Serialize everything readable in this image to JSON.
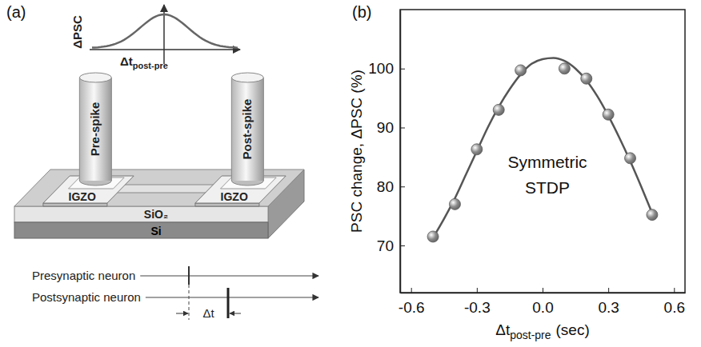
{
  "panel_labels": [
    "(a)",
    "(b)"
  ],
  "diagram": {
    "inset": {
      "ylabel": "ΔPSC",
      "xlabel": "Δt",
      "xlabel_sub": "post-pre"
    },
    "electrodes": [
      "Pre-spike",
      "Post-spike"
    ],
    "channels": [
      "IGZO",
      "IGZO"
    ],
    "layers": [
      "SiO₂",
      "Si"
    ],
    "timeline": {
      "neurons": [
        "Presynaptic neuron",
        "Postsynaptic neuron"
      ],
      "interval": "Δt"
    }
  },
  "chart_data": {
    "type": "scatter",
    "ylabel": "PSC change, ΔPSC (%)",
    "xlabel": "Δt",
    "xlabel_sub": "post-pre",
    "xlabel_unit": "(sec)",
    "annotation": "Symmetric STDP",
    "xlim": [
      -0.65,
      0.65
    ],
    "xticks": [
      -0.6,
      -0.3,
      {
        "value": 0,
        "label": "0.0"
      },
      0.3,
      0.6
    ],
    "ylim": [
      62,
      110
    ],
    "yticks": [
      70,
      80,
      90,
      100
    ],
    "grid": false,
    "series": [
      {
        "type": "line",
        "line_style": "solid",
        "color": "#555555",
        "x": [
          -0.5,
          -0.45,
          -0.4,
          -0.35,
          -0.3,
          -0.25,
          -0.2,
          -0.15,
          -0.1,
          -0.05,
          0,
          0.05,
          0.1,
          0.15,
          0.2,
          0.25,
          0.3,
          0.35,
          0.4,
          0.45,
          0.5
        ],
        "values": [
          71.3,
          74.5,
          78,
          82,
          86,
          90,
          93.5,
          96.5,
          99,
          100.8,
          101.6,
          101.8,
          101.3,
          100,
          98,
          95.3,
          92,
          88.3,
          84.3,
          80,
          75.5
        ]
      },
      {
        "type": "scatter",
        "marker": "circle",
        "color": "#8c8c8c",
        "x": [
          -0.5,
          -0.4,
          -0.3,
          -0.2,
          -0.1,
          0.1,
          0.2,
          0.3,
          0.4,
          0.5
        ],
        "values": [
          71.5,
          77,
          86.3,
          93,
          99.7,
          100,
          98.3,
          92.2,
          84.8,
          75.2
        ]
      }
    ]
  }
}
